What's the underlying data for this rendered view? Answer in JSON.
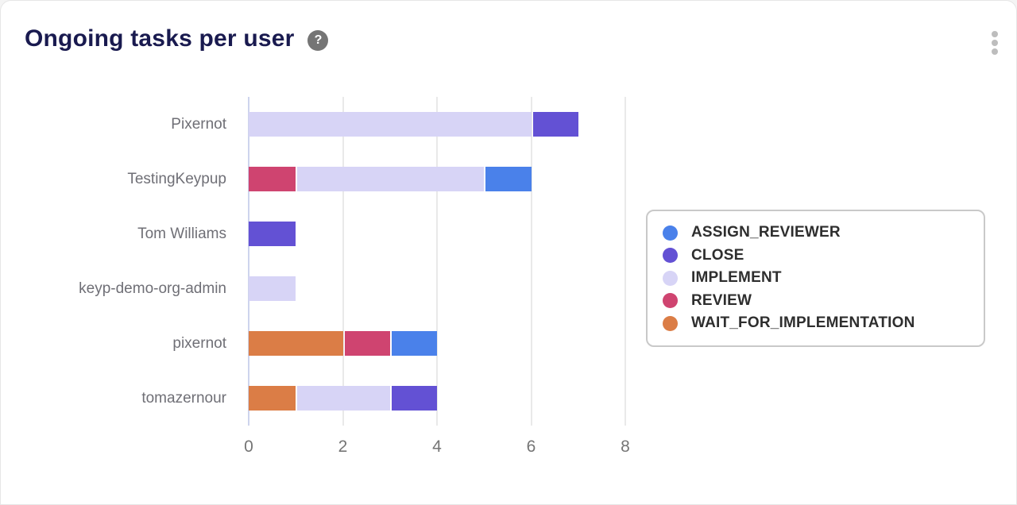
{
  "header": {
    "title": "Ongoing tasks per user",
    "help_icon_glyph": "?",
    "menu_icon": "kebab-menu-icon"
  },
  "colors": {
    "ASSIGN_REVIEWER": "#4a81ea",
    "CLOSE": "#6351d4",
    "IMPLEMENT": "#d7d4f6",
    "REVIEW": "#cf4470",
    "WAIT_FOR_IMPLEMENTATION": "#db7d46",
    "title_text": "#191a4f",
    "category_label": "#6f6f76",
    "tick_label": "#757575",
    "axis_line": "#ced4ed",
    "gridline": "#e9e9e9",
    "legend_border": "#c9c9c9",
    "legend_text": "#2e2e2e",
    "card_border": "#e6e6e6",
    "help_icon_bg": "#757575",
    "kebab_dot": "#bdbdbd"
  },
  "chart_data": {
    "type": "bar",
    "orientation": "horizontal",
    "stacked": true,
    "title": "Ongoing tasks per user",
    "xlabel": "",
    "ylabel": "",
    "x_ticks": [
      0,
      2,
      4,
      6,
      8
    ],
    "x_max": 8,
    "grid": true,
    "legend_position": "right",
    "categories": [
      "Pixernot",
      "TestingKeypup",
      "Tom Williams",
      "keyp-demo-org-admin",
      "pixernot",
      "tomazernour"
    ],
    "series": [
      {
        "name": "ASSIGN_REVIEWER",
        "color": "#4a81ea",
        "values": [
          0,
          1,
          0,
          0,
          1,
          0
        ]
      },
      {
        "name": "CLOSE",
        "color": "#6351d4",
        "values": [
          1,
          0,
          1,
          0,
          0,
          1
        ]
      },
      {
        "name": "IMPLEMENT",
        "color": "#d7d4f6",
        "values": [
          6,
          4,
          0,
          1,
          0,
          2
        ]
      },
      {
        "name": "REVIEW",
        "color": "#cf4470",
        "values": [
          0,
          1,
          0,
          0,
          1,
          0
        ]
      },
      {
        "name": "WAIT_FOR_IMPLEMENTATION",
        "color": "#db7d46",
        "values": [
          0,
          0,
          0,
          0,
          2,
          1
        ]
      }
    ],
    "rows": [
      {
        "label": "Pixernot",
        "segments": [
          {
            "series": "IMPLEMENT",
            "value": 6
          },
          {
            "series": "CLOSE",
            "value": 1
          }
        ]
      },
      {
        "label": "TestingKeypup",
        "segments": [
          {
            "series": "REVIEW",
            "value": 1
          },
          {
            "series": "IMPLEMENT",
            "value": 4
          },
          {
            "series": "ASSIGN_REVIEWER",
            "value": 1
          }
        ]
      },
      {
        "label": "Tom Williams",
        "segments": [
          {
            "series": "CLOSE",
            "value": 1
          }
        ]
      },
      {
        "label": "keyp-demo-org-admin",
        "segments": [
          {
            "series": "IMPLEMENT",
            "value": 1
          }
        ]
      },
      {
        "label": "pixernot",
        "segments": [
          {
            "series": "WAIT_FOR_IMPLEMENTATION",
            "value": 2
          },
          {
            "series": "REVIEW",
            "value": 1
          },
          {
            "series": "ASSIGN_REVIEWER",
            "value": 1
          }
        ]
      },
      {
        "label": "tomazernour",
        "segments": [
          {
            "series": "WAIT_FOR_IMPLEMENTATION",
            "value": 1
          },
          {
            "series": "IMPLEMENT",
            "value": 2
          },
          {
            "series": "CLOSE",
            "value": 1
          }
        ]
      }
    ]
  },
  "legend": {
    "items": [
      {
        "label": "ASSIGN_REVIEWER",
        "color": "#4a81ea"
      },
      {
        "label": "CLOSE",
        "color": "#6351d4"
      },
      {
        "label": "IMPLEMENT",
        "color": "#d7d4f6"
      },
      {
        "label": "REVIEW",
        "color": "#cf4470"
      },
      {
        "label": "WAIT_FOR_IMPLEMENTATION",
        "color": "#db7d46"
      }
    ]
  }
}
